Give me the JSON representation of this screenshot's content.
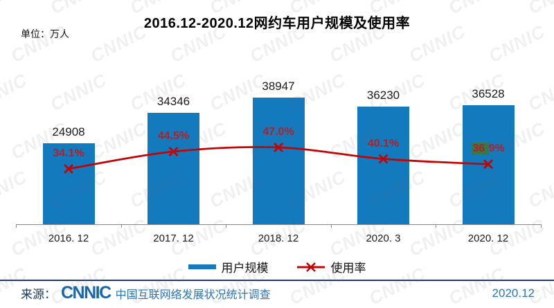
{
  "title": "2016.12-2020.12网约车用户规模及使用率",
  "unit_label": "单位：万人",
  "chart_data": {
    "type": "bar",
    "subtype": "bar+line combo",
    "categories": [
      "2016.12",
      "2017.12",
      "2018.12",
      "2020.3",
      "2020.12"
    ],
    "category_display": [
      "2016. 12",
      "2017. 12",
      "2018. 12",
      "2020. 3",
      "2020. 12"
    ],
    "series": [
      {
        "name": "用户规模",
        "type": "bar",
        "unit": "万人",
        "values": [
          24908,
          34346,
          38947,
          36230,
          36528
        ]
      },
      {
        "name": "使用率",
        "type": "line",
        "unit": "%",
        "values": [
          34.1,
          44.5,
          47.0,
          40.1,
          36.9
        ]
      }
    ],
    "value_labels": [
      "24908",
      "34346",
      "38947",
      "36230",
      "36528"
    ],
    "usage_labels": [
      "34.1%",
      "44.5%",
      "47.0%",
      "40.1%",
      "36.9%"
    ],
    "title": "2016.12-2020.12网约车用户规模及使用率",
    "xlabel": "",
    "ylabel": "单位：万人",
    "grid": false,
    "legend_position": "bottom"
  },
  "legend": {
    "bar_label": "用户规模",
    "line_label": "使用率"
  },
  "footer": {
    "source_label": "来源：",
    "logo_text": "CNNIC",
    "source_text": "中国互联网络发展状况统计调查",
    "date": "2020.12"
  },
  "watermark_text": "CNNIC",
  "artifact": {
    "note": "green highlight patch over last usage label",
    "index": 4,
    "covered_text": "36.",
    "color": "#35794a"
  },
  "colors": {
    "bar_blue": "#147abe",
    "line_red": "#c00505",
    "pct_red": "#b22025",
    "value_text": "#1a1a1a",
    "axis_gray": "#8a8a8a",
    "footer_rule_navy": "#1f3864",
    "source_label_navy": "#17375e",
    "logo_blue": "#1766ae",
    "footer_text_blue": "#2e75b6",
    "green_patch": "#35794a"
  }
}
